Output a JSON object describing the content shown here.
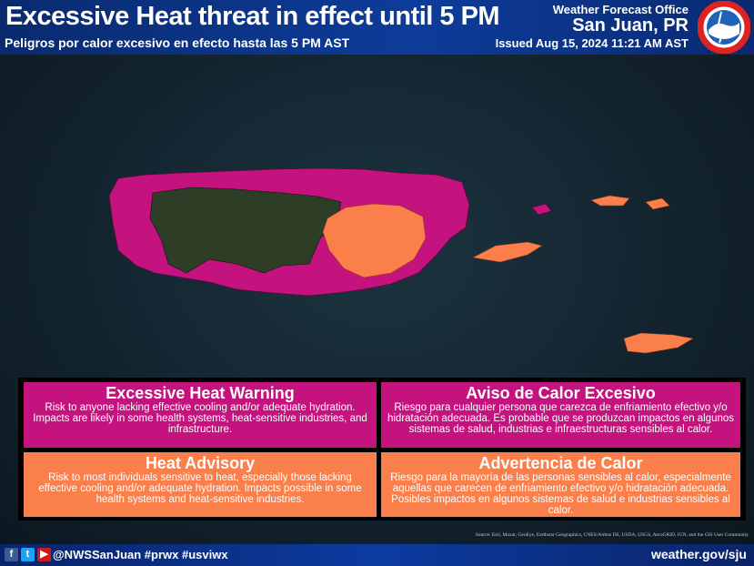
{
  "header": {
    "title": "Excessive Heat threat in effect until 5 PM",
    "subtitle": "Peligros por calor excesivo en efecto hasta las 5 PM AST",
    "office_label": "Weather Forecast Office",
    "office_name": "San Juan, PR",
    "issued": "Issued Aug 15, 2024 11:21 AM AST",
    "logo_text": "NATIONAL WEATHER SERVICE"
  },
  "colors": {
    "warning": "#c4137e",
    "advisory": "#fb7f4b",
    "no_hazard": "#2e3d25"
  },
  "legend": {
    "warning_en": {
      "title": "Excessive Heat Warning",
      "text": "Risk to anyone lacking effective cooling and/or adequate hydration. Impacts are likely in some health systems, heat-sensitive industries, and infrastructure."
    },
    "warning_es": {
      "title": "Aviso de Calor Excesivo",
      "text": "Riesgo para cualquier persona que carezca de enfriamiento efectivo y/o hidratación adecuada. Es probable que se produzcan impactos en algunos sistemas de salud, industrias e infraestructuras sensibles al calor."
    },
    "advisory_en": {
      "title": "Heat Advisory",
      "text": "Risk to most individuals sensitive to heat, especially those lacking effective cooling and/or adequate hydration. Impacts possible in some health systems and heat-sensitive industries."
    },
    "advisory_es": {
      "title": "Advertencia de Calor",
      "text": "Riesgo para la mayoría de las personas sensibles al calor, especialmente aquellas que carecen de enfriamiento efectivo y/o hidratación adecuada. Posibles impactos en algunos sistemas de salud e industrias sensibles al calor."
    }
  },
  "source": "Source: Esri, Maxar, GeoEye, Earthstar Geographics, CNES/Airbus DS, USDA, USGS, AeroGRID, IGN, and the GIS User Community",
  "footer": {
    "social_icons": [
      "facebook-icon",
      "twitter-icon",
      "youtube-icon"
    ],
    "handle": "@NWSSanJuan #prwx #usviwx",
    "url": "weather.gov/sju"
  }
}
